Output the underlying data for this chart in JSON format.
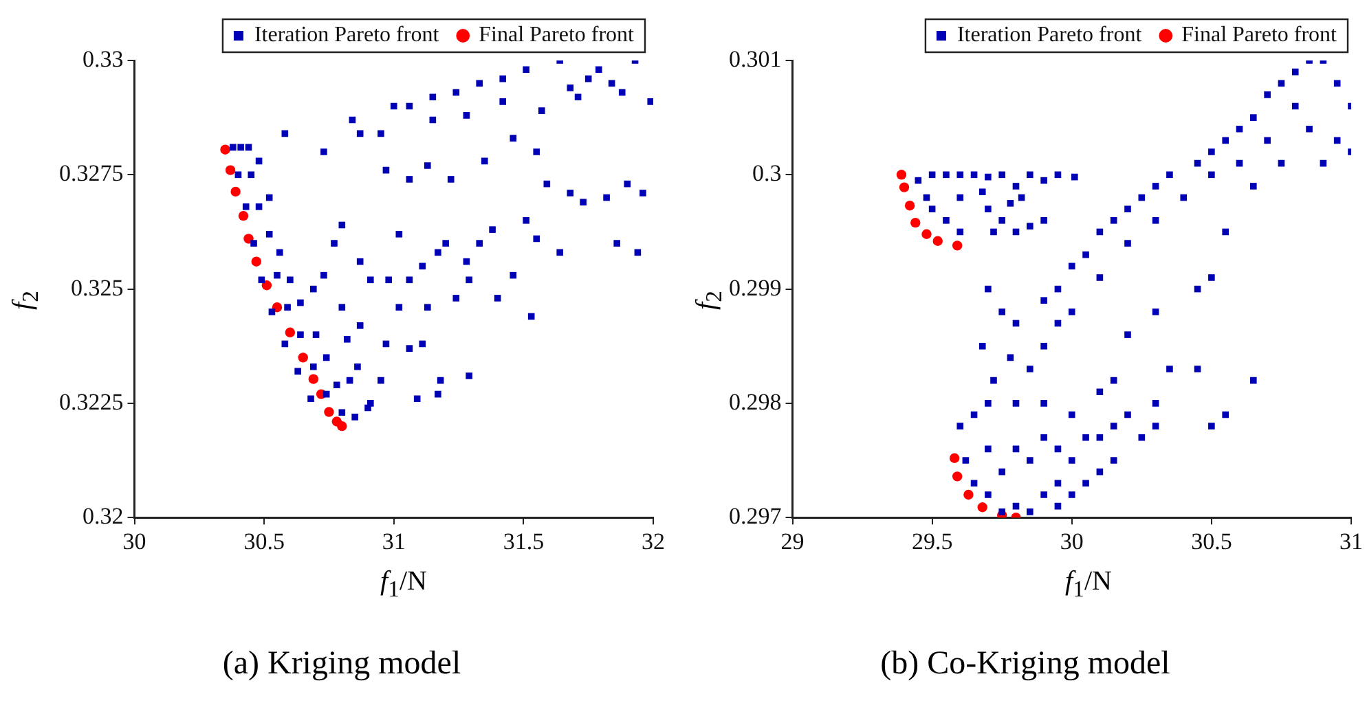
{
  "chart_data": [
    {
      "type": "scatter",
      "title": "(a) Kriging model",
      "xlabel": "f$_{1}$/N",
      "ylabel": "f$_{2}$",
      "xlim": [
        30,
        32
      ],
      "ylim": [
        0.32,
        0.33
      ],
      "xticks": [
        30,
        30.5,
        31,
        31.5,
        32
      ],
      "yticks": [
        0.32,
        0.3225,
        0.325,
        0.3275,
        0.33
      ],
      "grid": false,
      "legend": "top",
      "series": [
        {
          "name": "Iteration Pareto front",
          "color": "#0000b4",
          "marker": "square",
          "x": [
            30.38,
            30.41,
            30.44,
            30.4,
            30.45,
            30.48,
            30.43,
            30.48,
            30.52,
            30.46,
            30.52,
            30.56,
            30.49,
            30.55,
            30.6,
            30.53,
            30.59,
            30.64,
            30.58,
            30.64,
            30.7,
            30.63,
            30.69,
            30.74,
            30.68,
            30.74,
            30.78,
            30.8,
            30.85,
            30.9,
            30.83,
            30.58,
            30.73,
            30.84,
            30.87,
            31.0,
            31.06,
            31.15,
            31.24,
            31.33,
            31.42,
            31.51,
            31.64,
            31.79,
            31.93,
            31.99,
            31.88,
            31.71,
            31.57,
            31.42,
            31.28,
            31.15,
            31.68,
            31.75,
            31.84,
            30.95,
            30.97,
            31.06,
            31.13,
            31.22,
            31.35,
            31.46,
            31.55,
            31.59,
            31.68,
            31.73,
            31.82,
            31.9,
            31.96,
            31.86,
            31.94,
            31.64,
            31.55,
            31.51,
            31.38,
            31.33,
            31.28,
            31.2,
            31.17,
            31.11,
            31.06,
            31.02,
            30.98,
            30.91,
            30.87,
            30.8,
            30.77,
            30.73,
            30.69,
            30.8,
            30.87,
            30.97,
            31.06,
            31.11,
            31.02,
            31.13,
            31.24,
            31.29,
            31.4,
            31.46,
            31.53,
            31.29,
            31.18,
            31.09,
            31.17,
            30.95,
            30.91,
            30.86,
            30.82
          ],
          "values": [
            0.3281,
            0.3281,
            0.3281,
            0.3275,
            0.3275,
            0.3278,
            0.3268,
            0.3268,
            0.327,
            0.326,
            0.3262,
            0.3258,
            0.3252,
            0.3253,
            0.3252,
            0.3245,
            0.3246,
            0.3247,
            0.3238,
            0.324,
            0.324,
            0.3232,
            0.3233,
            0.3235,
            0.3226,
            0.3227,
            0.3229,
            0.3223,
            0.3222,
            0.3224,
            0.323,
            0.3284,
            0.328,
            0.3287,
            0.3284,
            0.329,
            0.329,
            0.3292,
            0.3293,
            0.3295,
            0.3296,
            0.3298,
            0.33,
            0.3298,
            0.33,
            0.3291,
            0.3293,
            0.3292,
            0.3289,
            0.3291,
            0.3288,
            0.3287,
            0.3294,
            0.3296,
            0.3295,
            0.3284,
            0.3276,
            0.3274,
            0.3277,
            0.3274,
            0.3278,
            0.3283,
            0.328,
            0.3273,
            0.3271,
            0.3269,
            0.327,
            0.3273,
            0.3271,
            0.326,
            0.3258,
            0.3258,
            0.3261,
            0.3265,
            0.3263,
            0.326,
            0.3256,
            0.326,
            0.3258,
            0.3255,
            0.3252,
            0.3262,
            0.3252,
            0.3252,
            0.3256,
            0.3264,
            0.326,
            0.3253,
            0.325,
            0.3246,
            0.3242,
            0.3238,
            0.3237,
            0.3238,
            0.3246,
            0.3246,
            0.3248,
            0.3252,
            0.3248,
            0.3253,
            0.3244,
            0.3231,
            0.323,
            0.3226,
            0.3227,
            0.323,
            0.3225,
            0.3233,
            0.3239
          ]
        },
        {
          "name": "Final Pareto front",
          "color": "#ff0000",
          "marker": "circle",
          "x": [
            30.35,
            30.37,
            30.39,
            30.42,
            30.44,
            30.47,
            30.51,
            30.55,
            30.6,
            30.65,
            30.69,
            30.72,
            30.75,
            30.78,
            30.8
          ],
          "values": [
            0.32805,
            0.3276,
            0.32713,
            0.3266,
            0.3261,
            0.3256,
            0.32508,
            0.3246,
            0.32405,
            0.3235,
            0.32303,
            0.3227,
            0.32231,
            0.3221,
            0.322
          ]
        }
      ]
    },
    {
      "type": "scatter",
      "title": "(b) Co-Kriging model",
      "xlabel": "f$_{1}$/N",
      "ylabel": "f$_{2}$",
      "xlim": [
        29,
        31
      ],
      "ylim": [
        0.297,
        0.301
      ],
      "xticks": [
        29,
        29.5,
        30,
        30.5,
        31
      ],
      "yticks": [
        0.297,
        0.298,
        0.299,
        0.3,
        0.301
      ],
      "grid": false,
      "legend": "top",
      "series": [
        {
          "name": "Iteration Pareto front",
          "color": "#0000b4",
          "marker": "square",
          "x": [
            29.45,
            29.5,
            29.55,
            29.6,
            29.5,
            29.55,
            29.6,
            29.6,
            29.48,
            29.65,
            29.7,
            29.75,
            29.8,
            29.85,
            29.9,
            29.95,
            30.01,
            29.7,
            29.75,
            29.8,
            29.85,
            29.72,
            29.78,
            29.9,
            29.68,
            29.82,
            29.6,
            29.62,
            29.65,
            29.7,
            29.75,
            29.8,
            29.85,
            29.9,
            29.95,
            29.65,
            29.7,
            29.75,
            29.8,
            29.85,
            29.9,
            29.95,
            30.0,
            29.7,
            29.8,
            29.9,
            30.0,
            30.05,
            30.1,
            30.15,
            30.2,
            30.25,
            30.3,
            29.95,
            30.0,
            30.05,
            30.1,
            30.15,
            29.85,
            29.9,
            29.95,
            29.9,
            29.95,
            30.0,
            30.0,
            30.05,
            30.1,
            30.1,
            30.15,
            30.2,
            30.2,
            30.25,
            30.3,
            30.3,
            30.35,
            30.4,
            30.45,
            30.5,
            30.5,
            30.55,
            30.6,
            30.6,
            30.65,
            30.7,
            30.7,
            30.75,
            30.8,
            30.8,
            30.85,
            30.9,
            30.95,
            31.0,
            30.95,
            30.9,
            31.0,
            30.85,
            30.75,
            30.65,
            29.7,
            29.75,
            29.68,
            29.72,
            29.8,
            29.78,
            30.2,
            30.3,
            30.45,
            30.5,
            30.55,
            30.5,
            30.55,
            30.65,
            30.45,
            30.3,
            30.35,
            30.1,
            30.15
          ],
          "values": [
            0.29995,
            0.3,
            0.3,
            0.3,
            0.2997,
            0.2996,
            0.2995,
            0.2998,
            0.2998,
            0.3,
            0.29998,
            0.3,
            0.2999,
            0.3,
            0.29995,
            0.3,
            0.29998,
            0.2997,
            0.2996,
            0.2995,
            0.29955,
            0.2995,
            0.29975,
            0.2996,
            0.29985,
            0.2998,
            0.2978,
            0.2975,
            0.2973,
            0.2972,
            0.29705,
            0.2971,
            0.29705,
            0.2972,
            0.2973,
            0.2979,
            0.2976,
            0.2974,
            0.2976,
            0.2975,
            0.2977,
            0.2976,
            0.2975,
            0.298,
            0.298,
            0.298,
            0.2979,
            0.2977,
            0.2977,
            0.2978,
            0.2979,
            0.2977,
            0.2978,
            0.2971,
            0.2972,
            0.2973,
            0.2974,
            0.2975,
            0.2983,
            0.2985,
            0.2987,
            0.2989,
            0.299,
            0.2988,
            0.2992,
            0.2993,
            0.2991,
            0.2995,
            0.2996,
            0.2994,
            0.2997,
            0.2998,
            0.2996,
            0.2999,
            0.3,
            0.2998,
            0.3001,
            0.3002,
            0.3,
            0.3003,
            0.3001,
            0.3004,
            0.3005,
            0.3003,
            0.3007,
            0.3008,
            0.3006,
            0.3009,
            0.301,
            0.301,
            0.3008,
            0.3006,
            0.3003,
            0.3001,
            0.3002,
            0.3004,
            0.3001,
            0.2999,
            0.299,
            0.2988,
            0.2985,
            0.2982,
            0.2987,
            0.2984,
            0.2986,
            0.2988,
            0.299,
            0.2991,
            0.2995,
            0.2978,
            0.2979,
            0.2982,
            0.2983,
            0.298,
            0.2983,
            0.2981,
            0.2982
          ]
        },
        {
          "name": "Final Pareto front",
          "color": "#ff0000",
          "marker": "circle",
          "x": [
            29.39,
            29.4,
            29.42,
            29.44,
            29.48,
            29.52,
            29.59,
            29.58,
            29.59,
            29.63,
            29.68,
            29.75,
            29.8
          ],
          "values": [
            0.3,
            0.29989,
            0.29973,
            0.29958,
            0.29948,
            0.29942,
            0.29938,
            0.29752,
            0.29736,
            0.2972,
            0.29709,
            0.29702,
            0.297
          ]
        }
      ]
    }
  ]
}
